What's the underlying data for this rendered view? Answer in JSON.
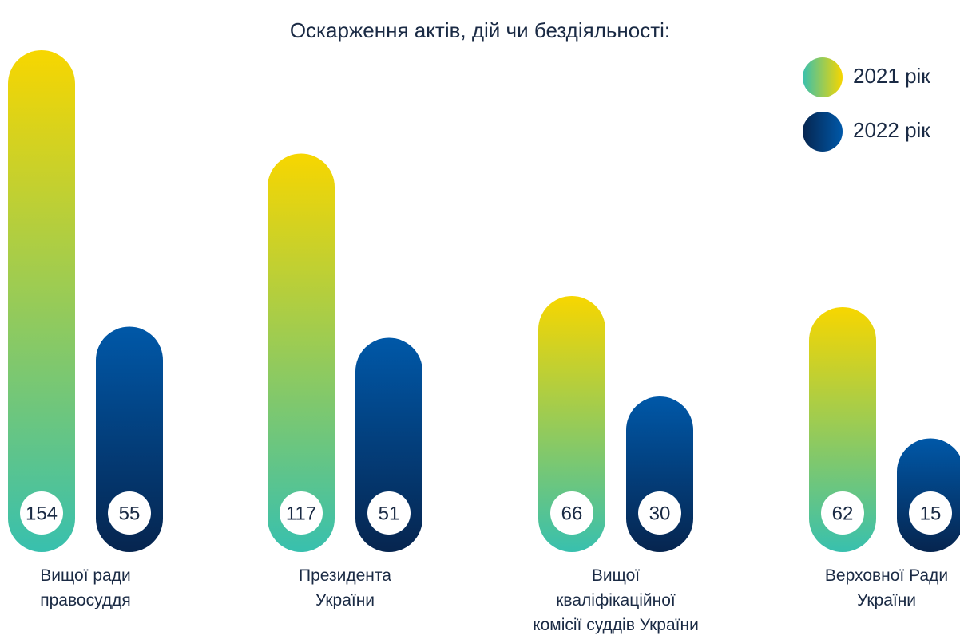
{
  "chart_data": {
    "type": "bar",
    "title": "Оскарження актів, дій чи бездіяльності:",
    "categories": [
      "Вищої ради\nправосуддя",
      "Президента\nУкраїни",
      "Вищої\nкваліфікаційної\nкомісії суддів України",
      "Верховної Ради\nУкраїни"
    ],
    "series": [
      {
        "name": "2021 рік",
        "gradient": [
          "#f7d600",
          "#38c0ae"
        ],
        "values": [
          154,
          117,
          66,
          62
        ]
      },
      {
        "name": "2022 рік",
        "gradient": [
          "#0058a8",
          "#06254f"
        ],
        "values": [
          55,
          51,
          30,
          15
        ]
      }
    ],
    "legend": "top-right"
  }
}
